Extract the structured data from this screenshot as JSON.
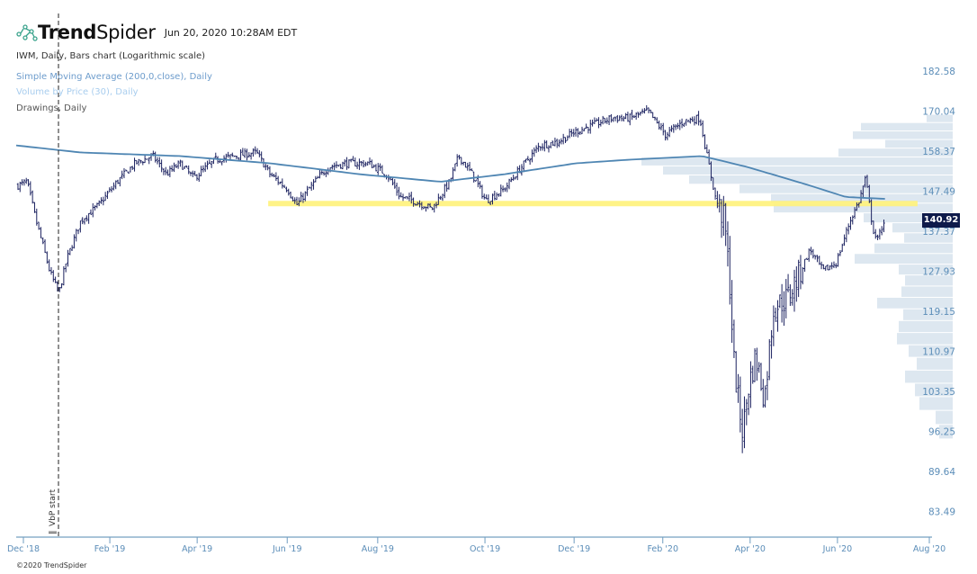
{
  "header": {
    "brand_bold": "Trend",
    "brand_light": "Spider",
    "timestamp": "Jun 20, 2020 10:28AM EDT"
  },
  "legend": {
    "main": "IWM, Daily, Bars chart (Logarithmic scale)",
    "sma": "Simple Moving Average (200,0,close), Daily",
    "vbp": "Volume by Price (30), Daily",
    "drawings": "Drawings, Daily"
  },
  "footer": {
    "copyright": "©2020 TrendSpider"
  },
  "colors": {
    "bars": "#1c2260",
    "sma": "#4f86b3",
    "vbp": "#dde7f0",
    "support": "#fff27a",
    "axis": "#5b8db8",
    "price_tag": "#0e1a4a"
  },
  "chart_data": {
    "type": "bar",
    "symbol": "IWM",
    "scale": "log",
    "current_price": "140.92",
    "vbp_start_label": "VbP start",
    "vbp_start_month": 0.78,
    "x_unit": "months since Dec 1 2018",
    "x_ticks": [
      {
        "label": "Dec '18",
        "m": 0
      },
      {
        "label": "Feb '19",
        "m": 1.91
      },
      {
        "label": "Apr '19",
        "m": 3.84
      },
      {
        "label": "Jun '19",
        "m": 5.83
      },
      {
        "label": "Aug '19",
        "m": 7.83
      },
      {
        "label": "Oct '19",
        "m": 10.2
      },
      {
        "label": "Dec '19",
        "m": 12.17
      },
      {
        "label": "Feb '20",
        "m": 14.13
      },
      {
        "label": "Apr '20",
        "m": 16.06
      },
      {
        "label": "Jun '20",
        "m": 17.99
      },
      {
        "label": "Aug '20",
        "m": 20.02
      }
    ],
    "y_ticks": [
      "182.58",
      "170.04",
      "158.37",
      "147.49",
      "137.37",
      "127.93",
      "119.15",
      "110.97",
      "103.35",
      "96.25",
      "89.64",
      "83.49"
    ],
    "ylim": [
      80.5,
      186
    ],
    "price_path": [
      [
        -0.12,
        149
      ],
      [
        0.08,
        150
      ],
      [
        0.28,
        140
      ],
      [
        0.58,
        128
      ],
      [
        0.78,
        123
      ],
      [
        0.97,
        131
      ],
      [
        1.27,
        140
      ],
      [
        1.67,
        144
      ],
      [
        2.07,
        150
      ],
      [
        2.47,
        155
      ],
      [
        2.86,
        157
      ],
      [
        3.16,
        152
      ],
      [
        3.46,
        155
      ],
      [
        3.76,
        151
      ],
      [
        4.25,
        156
      ],
      [
        4.65,
        157
      ],
      [
        5.15,
        158
      ],
      [
        5.45,
        152
      ],
      [
        5.84,
        148
      ],
      [
        6.04,
        144
      ],
      [
        6.44,
        150
      ],
      [
        6.74,
        154
      ],
      [
        7.14,
        155
      ],
      [
        7.63,
        155
      ],
      [
        8.03,
        152
      ],
      [
        8.33,
        146
      ],
      [
        8.63,
        145
      ],
      [
        9.03,
        143
      ],
      [
        9.42,
        150
      ],
      [
        9.62,
        157
      ],
      [
        9.92,
        152
      ],
      [
        10.22,
        145
      ],
      [
        10.62,
        148
      ],
      [
        11.01,
        154
      ],
      [
        11.41,
        160
      ],
      [
        11.81,
        161
      ],
      [
        12.21,
        164
      ],
      [
        12.6,
        166
      ],
      [
        13.0,
        168
      ],
      [
        13.4,
        168
      ],
      [
        13.8,
        170
      ],
      [
        14.19,
        163
      ],
      [
        14.59,
        167
      ],
      [
        14.95,
        168
      ],
      [
        15.09,
        158
      ],
      [
        15.29,
        146
      ],
      [
        15.49,
        140
      ],
      [
        15.55,
        133
      ],
      [
        15.63,
        122
      ],
      [
        15.69,
        110
      ],
      [
        15.79,
        102
      ],
      [
        15.9,
        96
      ],
      [
        16.02,
        104
      ],
      [
        16.18,
        110
      ],
      [
        16.38,
        102
      ],
      [
        16.58,
        120
      ],
      [
        16.88,
        122
      ],
      [
        17.18,
        128
      ],
      [
        17.38,
        133
      ],
      [
        17.67,
        128
      ],
      [
        17.97,
        130
      ],
      [
        18.27,
        140
      ],
      [
        18.47,
        145
      ],
      [
        18.61,
        151
      ],
      [
        18.77,
        138
      ],
      [
        18.87,
        135
      ],
      [
        19.05,
        141
      ]
    ],
    "sma_path": [
      [
        -0.16,
        160
      ],
      [
        1.27,
        158
      ],
      [
        3.46,
        157
      ],
      [
        5.45,
        155
      ],
      [
        7.44,
        152
      ],
      [
        9.22,
        150
      ],
      [
        10.62,
        152
      ],
      [
        12.21,
        155
      ],
      [
        13.4,
        156
      ],
      [
        15.0,
        157
      ],
      [
        15.99,
        154
      ],
      [
        17.38,
        149
      ],
      [
        18.17,
        146
      ],
      [
        19.07,
        145.5
      ]
    ],
    "support_line": {
      "price": 144.3,
      "from_m": 5.41,
      "to_m": 19.76
    },
    "vbp": {
      "price_low": 95.0,
      "price_high": 169.1,
      "volumes_top_to_bottom": [
        29,
        102,
        111,
        75,
        127,
        346,
        322,
        293,
        237,
        202,
        199,
        99,
        67,
        54,
        87,
        109,
        60,
        53,
        57,
        84,
        55,
        60,
        62,
        49,
        40,
        53,
        42,
        37,
        19,
        15
      ]
    }
  }
}
